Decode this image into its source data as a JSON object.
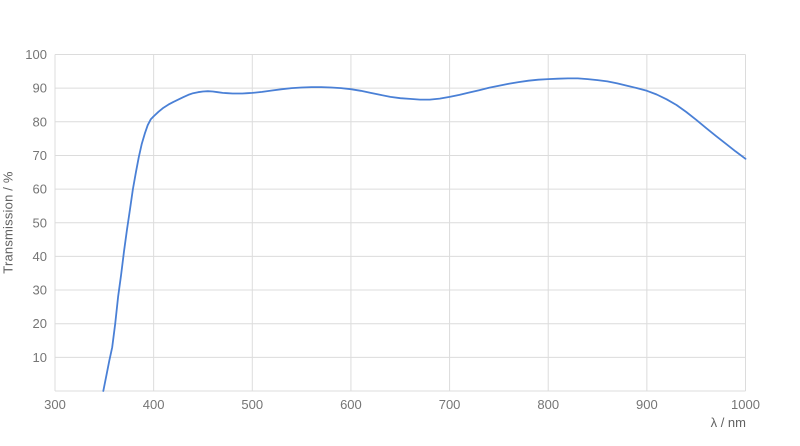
{
  "chart_data": {
    "type": "line",
    "title": "",
    "xlabel": "λ / nm",
    "ylabel": "Transmission / %",
    "xlim": [
      300,
      1000
    ],
    "ylim": [
      0,
      100
    ],
    "x_ticks": [
      300,
      400,
      500,
      600,
      700,
      800,
      900,
      1000
    ],
    "y_ticks": [
      10,
      20,
      30,
      40,
      50,
      60,
      70,
      80,
      90,
      100
    ],
    "grid": true,
    "legend": "none",
    "colors": {
      "line": "#4a80d6",
      "grid": "#dcdcdc",
      "tick_label": "#757575",
      "axis_title": "#616161",
      "background": "#ffffff"
    },
    "series": [
      {
        "name": "Transmission",
        "points": [
          [
            349,
            0
          ],
          [
            352,
            4.5
          ],
          [
            355,
            9
          ],
          [
            358,
            13
          ],
          [
            361,
            20
          ],
          [
            364,
            28
          ],
          [
            367,
            34.5
          ],
          [
            370,
            41.5
          ],
          [
            373,
            48
          ],
          [
            376,
            54
          ],
          [
            379,
            60
          ],
          [
            382,
            65
          ],
          [
            385,
            69.5
          ],
          [
            388,
            73.5
          ],
          [
            391,
            76.5
          ],
          [
            394,
            79
          ],
          [
            397,
            80.7
          ],
          [
            400,
            81.6
          ],
          [
            405,
            83
          ],
          [
            410,
            84.2
          ],
          [
            415,
            85.1
          ],
          [
            420,
            85.9
          ],
          [
            425,
            86.6
          ],
          [
            430,
            87.3
          ],
          [
            435,
            88
          ],
          [
            440,
            88.5
          ],
          [
            445,
            88.8
          ],
          [
            450,
            89
          ],
          [
            455,
            89.1
          ],
          [
            460,
            89
          ],
          [
            465,
            88.8
          ],
          [
            470,
            88.6
          ],
          [
            475,
            88.5
          ],
          [
            480,
            88.4
          ],
          [
            485,
            88.4
          ],
          [
            490,
            88.4
          ],
          [
            495,
            88.5
          ],
          [
            500,
            88.6
          ],
          [
            510,
            88.9
          ],
          [
            520,
            89.3
          ],
          [
            530,
            89.7
          ],
          [
            540,
            90
          ],
          [
            550,
            90.2
          ],
          [
            560,
            90.3
          ],
          [
            570,
            90.3
          ],
          [
            580,
            90.2
          ],
          [
            590,
            90
          ],
          [
            600,
            89.7
          ],
          [
            610,
            89.2
          ],
          [
            620,
            88.6
          ],
          [
            630,
            88
          ],
          [
            640,
            87.4
          ],
          [
            650,
            87
          ],
          [
            660,
            86.8
          ],
          [
            670,
            86.6
          ],
          [
            680,
            86.6
          ],
          [
            690,
            86.9
          ],
          [
            700,
            87.4
          ],
          [
            710,
            88
          ],
          [
            720,
            88.7
          ],
          [
            730,
            89.4
          ],
          [
            740,
            90.1
          ],
          [
            750,
            90.7
          ],
          [
            760,
            91.3
          ],
          [
            770,
            91.8
          ],
          [
            780,
            92.2
          ],
          [
            790,
            92.5
          ],
          [
            800,
            92.7
          ],
          [
            810,
            92.8
          ],
          [
            820,
            92.9
          ],
          [
            830,
            92.9
          ],
          [
            840,
            92.7
          ],
          [
            850,
            92.4
          ],
          [
            860,
            92
          ],
          [
            870,
            91.4
          ],
          [
            880,
            90.7
          ],
          [
            890,
            90
          ],
          [
            900,
            89.2
          ],
          [
            910,
            88.1
          ],
          [
            920,
            86.7
          ],
          [
            930,
            85
          ],
          [
            940,
            82.9
          ],
          [
            950,
            80.6
          ],
          [
            960,
            78.2
          ],
          [
            970,
            75.8
          ],
          [
            980,
            73.5
          ],
          [
            990,
            71.2
          ],
          [
            1000,
            69
          ]
        ]
      }
    ]
  }
}
